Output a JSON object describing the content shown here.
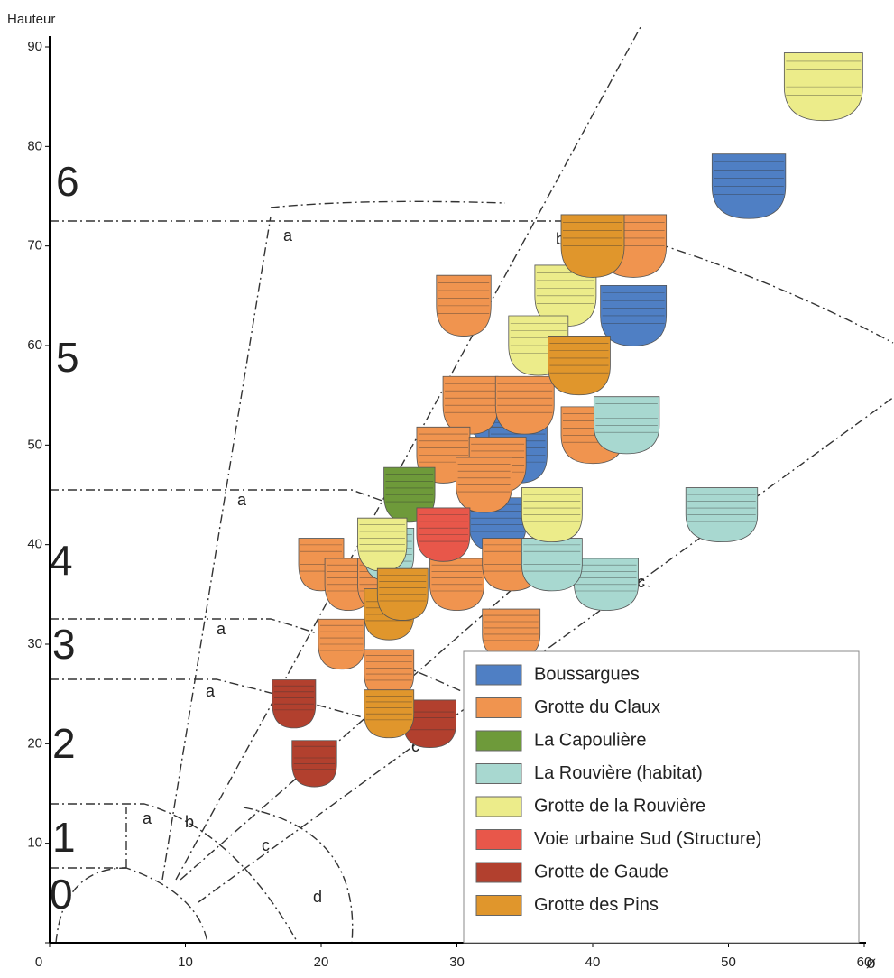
{
  "chart_data": {
    "type": "scatter",
    "y_label": "Hauteur",
    "x_label": "ø",
    "xlim": [
      0,
      60
    ],
    "ylim": [
      0,
      90
    ],
    "xticks": [
      0,
      10,
      20,
      30,
      40,
      50,
      60
    ],
    "yticks": [
      0,
      10,
      20,
      30,
      40,
      50,
      60,
      70,
      80,
      90
    ],
    "class_labels": [
      "6",
      "5",
      "4",
      "3",
      "2",
      "1",
      "0"
    ],
    "zone_labels": [
      "a",
      "a",
      "a",
      "a",
      "a",
      "b",
      "b",
      "b",
      "c",
      "c",
      "c",
      "d"
    ],
    "legend": "lower right",
    "series": [
      {
        "name": "Boussargues",
        "color": "#4f7fc4",
        "x": [
          51.5,
          43,
          33,
          34.5,
          33
        ],
        "values": [
          76,
          63,
          53,
          49,
          42
        ]
      },
      {
        "name": "Grotte du Claux",
        "color": "#f0944f",
        "x": [
          43,
          30.5,
          31,
          35,
          40,
          29,
          33,
          32,
          20,
          22,
          24.5,
          30,
          34,
          21.5,
          25,
          34
        ],
        "values": [
          70,
          64,
          54,
          54,
          51,
          49,
          48,
          46,
          38,
          36,
          36,
          36,
          38,
          30,
          27,
          31
        ]
      },
      {
        "name": "La Capoulière",
        "color": "#6e9a3a",
        "x": [
          26.5
        ],
        "values": [
          45
        ]
      },
      {
        "name": "La Rouvière (habitat)",
        "color": "#a8d8d0",
        "x": [
          42.5,
          49.5,
          41,
          37,
          25
        ],
        "values": [
          52,
          43,
          36,
          38,
          39
        ]
      },
      {
        "name": "Grotte de la Rouvière",
        "color": "#ecec8a",
        "x": [
          57,
          38,
          36,
          37,
          24.5
        ],
        "values": [
          86,
          65,
          60,
          43,
          40
        ]
      },
      {
        "name": "Voie urbaine Sud (Structure)",
        "color": "#e8574a",
        "x": [
          29
        ],
        "values": [
          41
        ]
      },
      {
        "name": "Grotte de Gaude",
        "color": "#b2402e",
        "x": [
          18,
          19.5,
          28
        ],
        "values": [
          24,
          18,
          22
        ]
      },
      {
        "name": "Grotte des Pins",
        "color": "#e0962c",
        "x": [
          40,
          39,
          25,
          25,
          26
        ],
        "values": [
          70,
          58,
          33,
          23,
          35
        ]
      }
    ]
  }
}
